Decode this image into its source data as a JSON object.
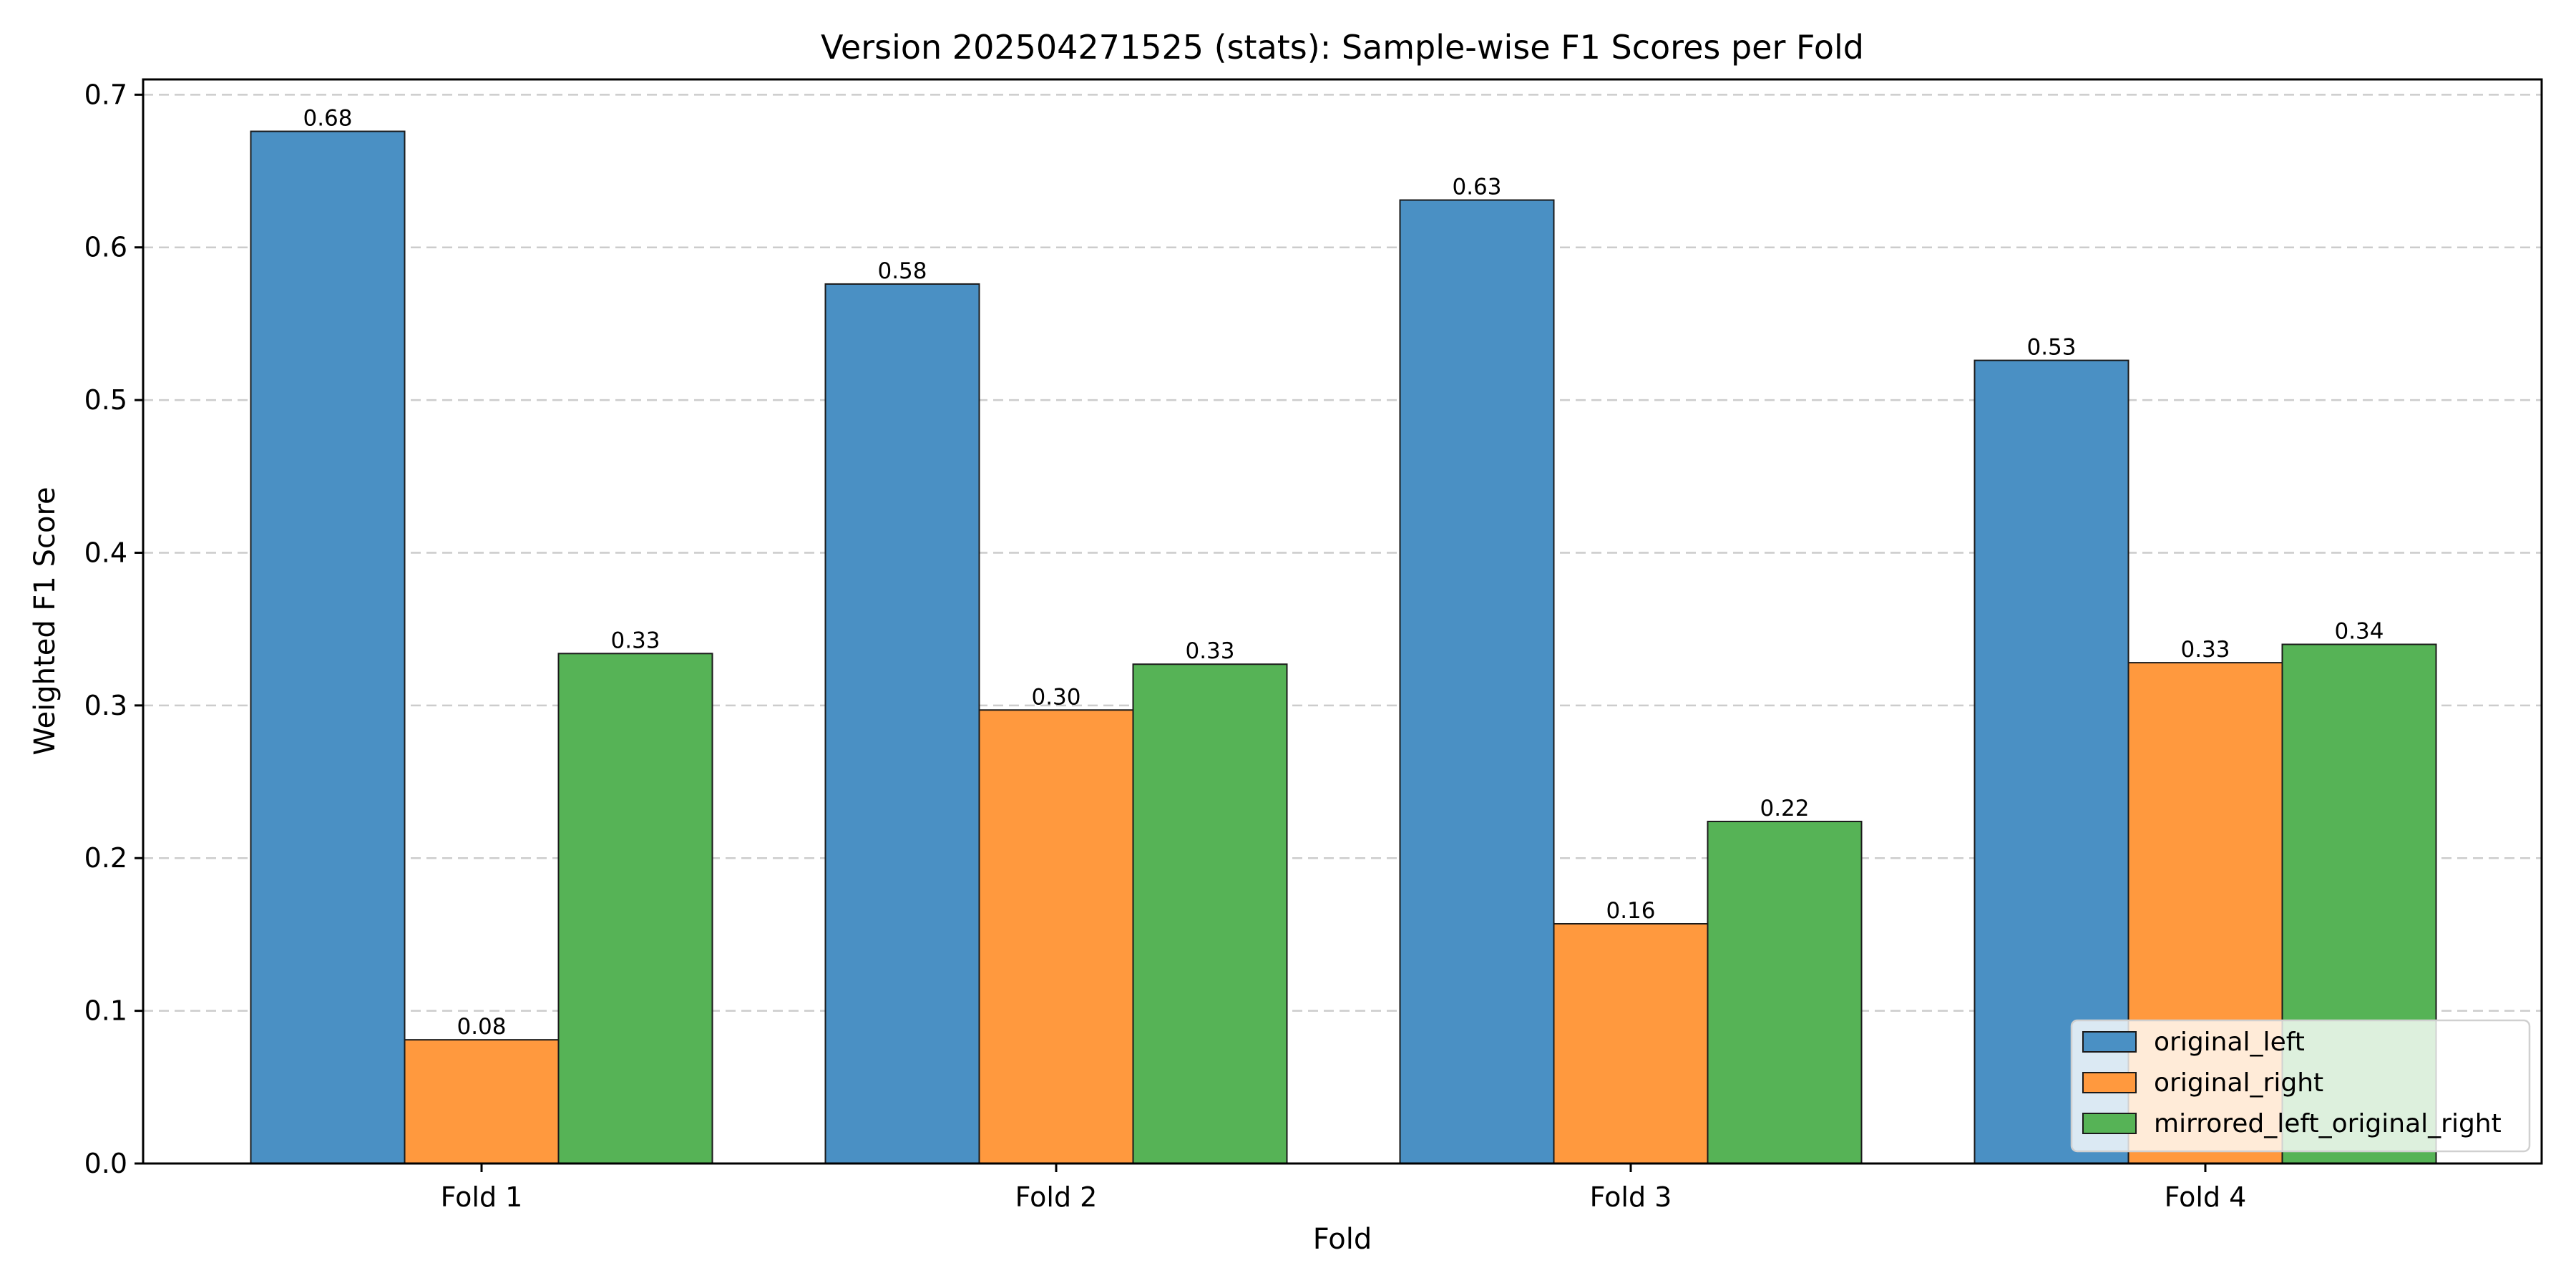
{
  "chart_data": {
    "type": "bar",
    "title": "Version 202504271525 (stats): Sample-wise F1 Scores per Fold",
    "xlabel": "Fold",
    "ylabel": "Weighted F1 Score",
    "categories": [
      "Fold 1",
      "Fold 2",
      "Fold 3",
      "Fold 4"
    ],
    "ylim": [
      0,
      0.71
    ],
    "yticks": [
      "0.0",
      "0.1",
      "0.2",
      "0.3",
      "0.4",
      "0.5",
      "0.6",
      "0.7"
    ],
    "grid": "y-dashed",
    "legend_position": "bottom-right",
    "series": [
      {
        "name": "original_left",
        "color": "#4a90c4",
        "values": [
          0.676,
          0.576,
          0.631,
          0.526
        ],
        "labels": [
          "0.68",
          "0.58",
          "0.63",
          "0.53"
        ]
      },
      {
        "name": "original_right",
        "color": "#ff993e",
        "values": [
          0.081,
          0.297,
          0.157,
          0.328
        ],
        "labels": [
          "0.08",
          "0.30",
          "0.16",
          "0.33"
        ]
      },
      {
        "name": "mirrored_left_original_right",
        "color": "#56b356",
        "values": [
          0.334,
          0.327,
          0.224,
          0.34
        ],
        "labels": [
          "0.33",
          "0.33",
          "0.22",
          "0.34"
        ]
      }
    ]
  }
}
